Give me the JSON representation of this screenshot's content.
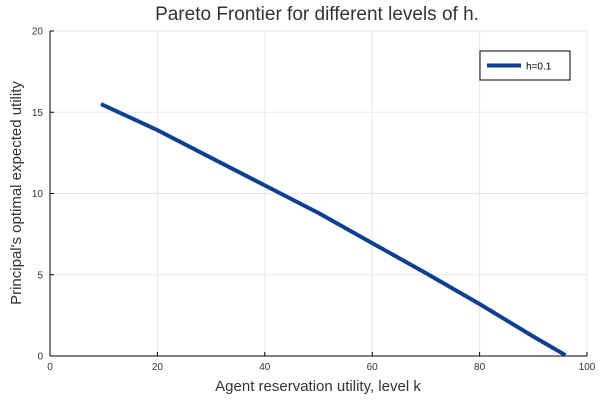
{
  "chart_data": {
    "type": "line",
    "title": "Pareto Frontier for different levels of h.",
    "xlabel": "Agent reservation utility, level k",
    "ylabel": "Principal's optimal expected utility",
    "xlim": [
      0,
      100
    ],
    "ylim": [
      0,
      20
    ],
    "x_ticks": [
      0,
      20,
      40,
      60,
      80,
      100
    ],
    "y_ticks": [
      0,
      5,
      10,
      15,
      20
    ],
    "grid": true,
    "legend_position": "top-right",
    "series": [
      {
        "name": "h=0.1",
        "color": "#0b3f91",
        "x": [
          9.5,
          20,
          30,
          40,
          50,
          60,
          70,
          80,
          90,
          96
        ],
        "y": [
          15.5,
          13.9,
          12.2,
          10.5,
          8.8,
          6.95,
          5.1,
          3.2,
          1.2,
          0.05
        ]
      }
    ]
  }
}
